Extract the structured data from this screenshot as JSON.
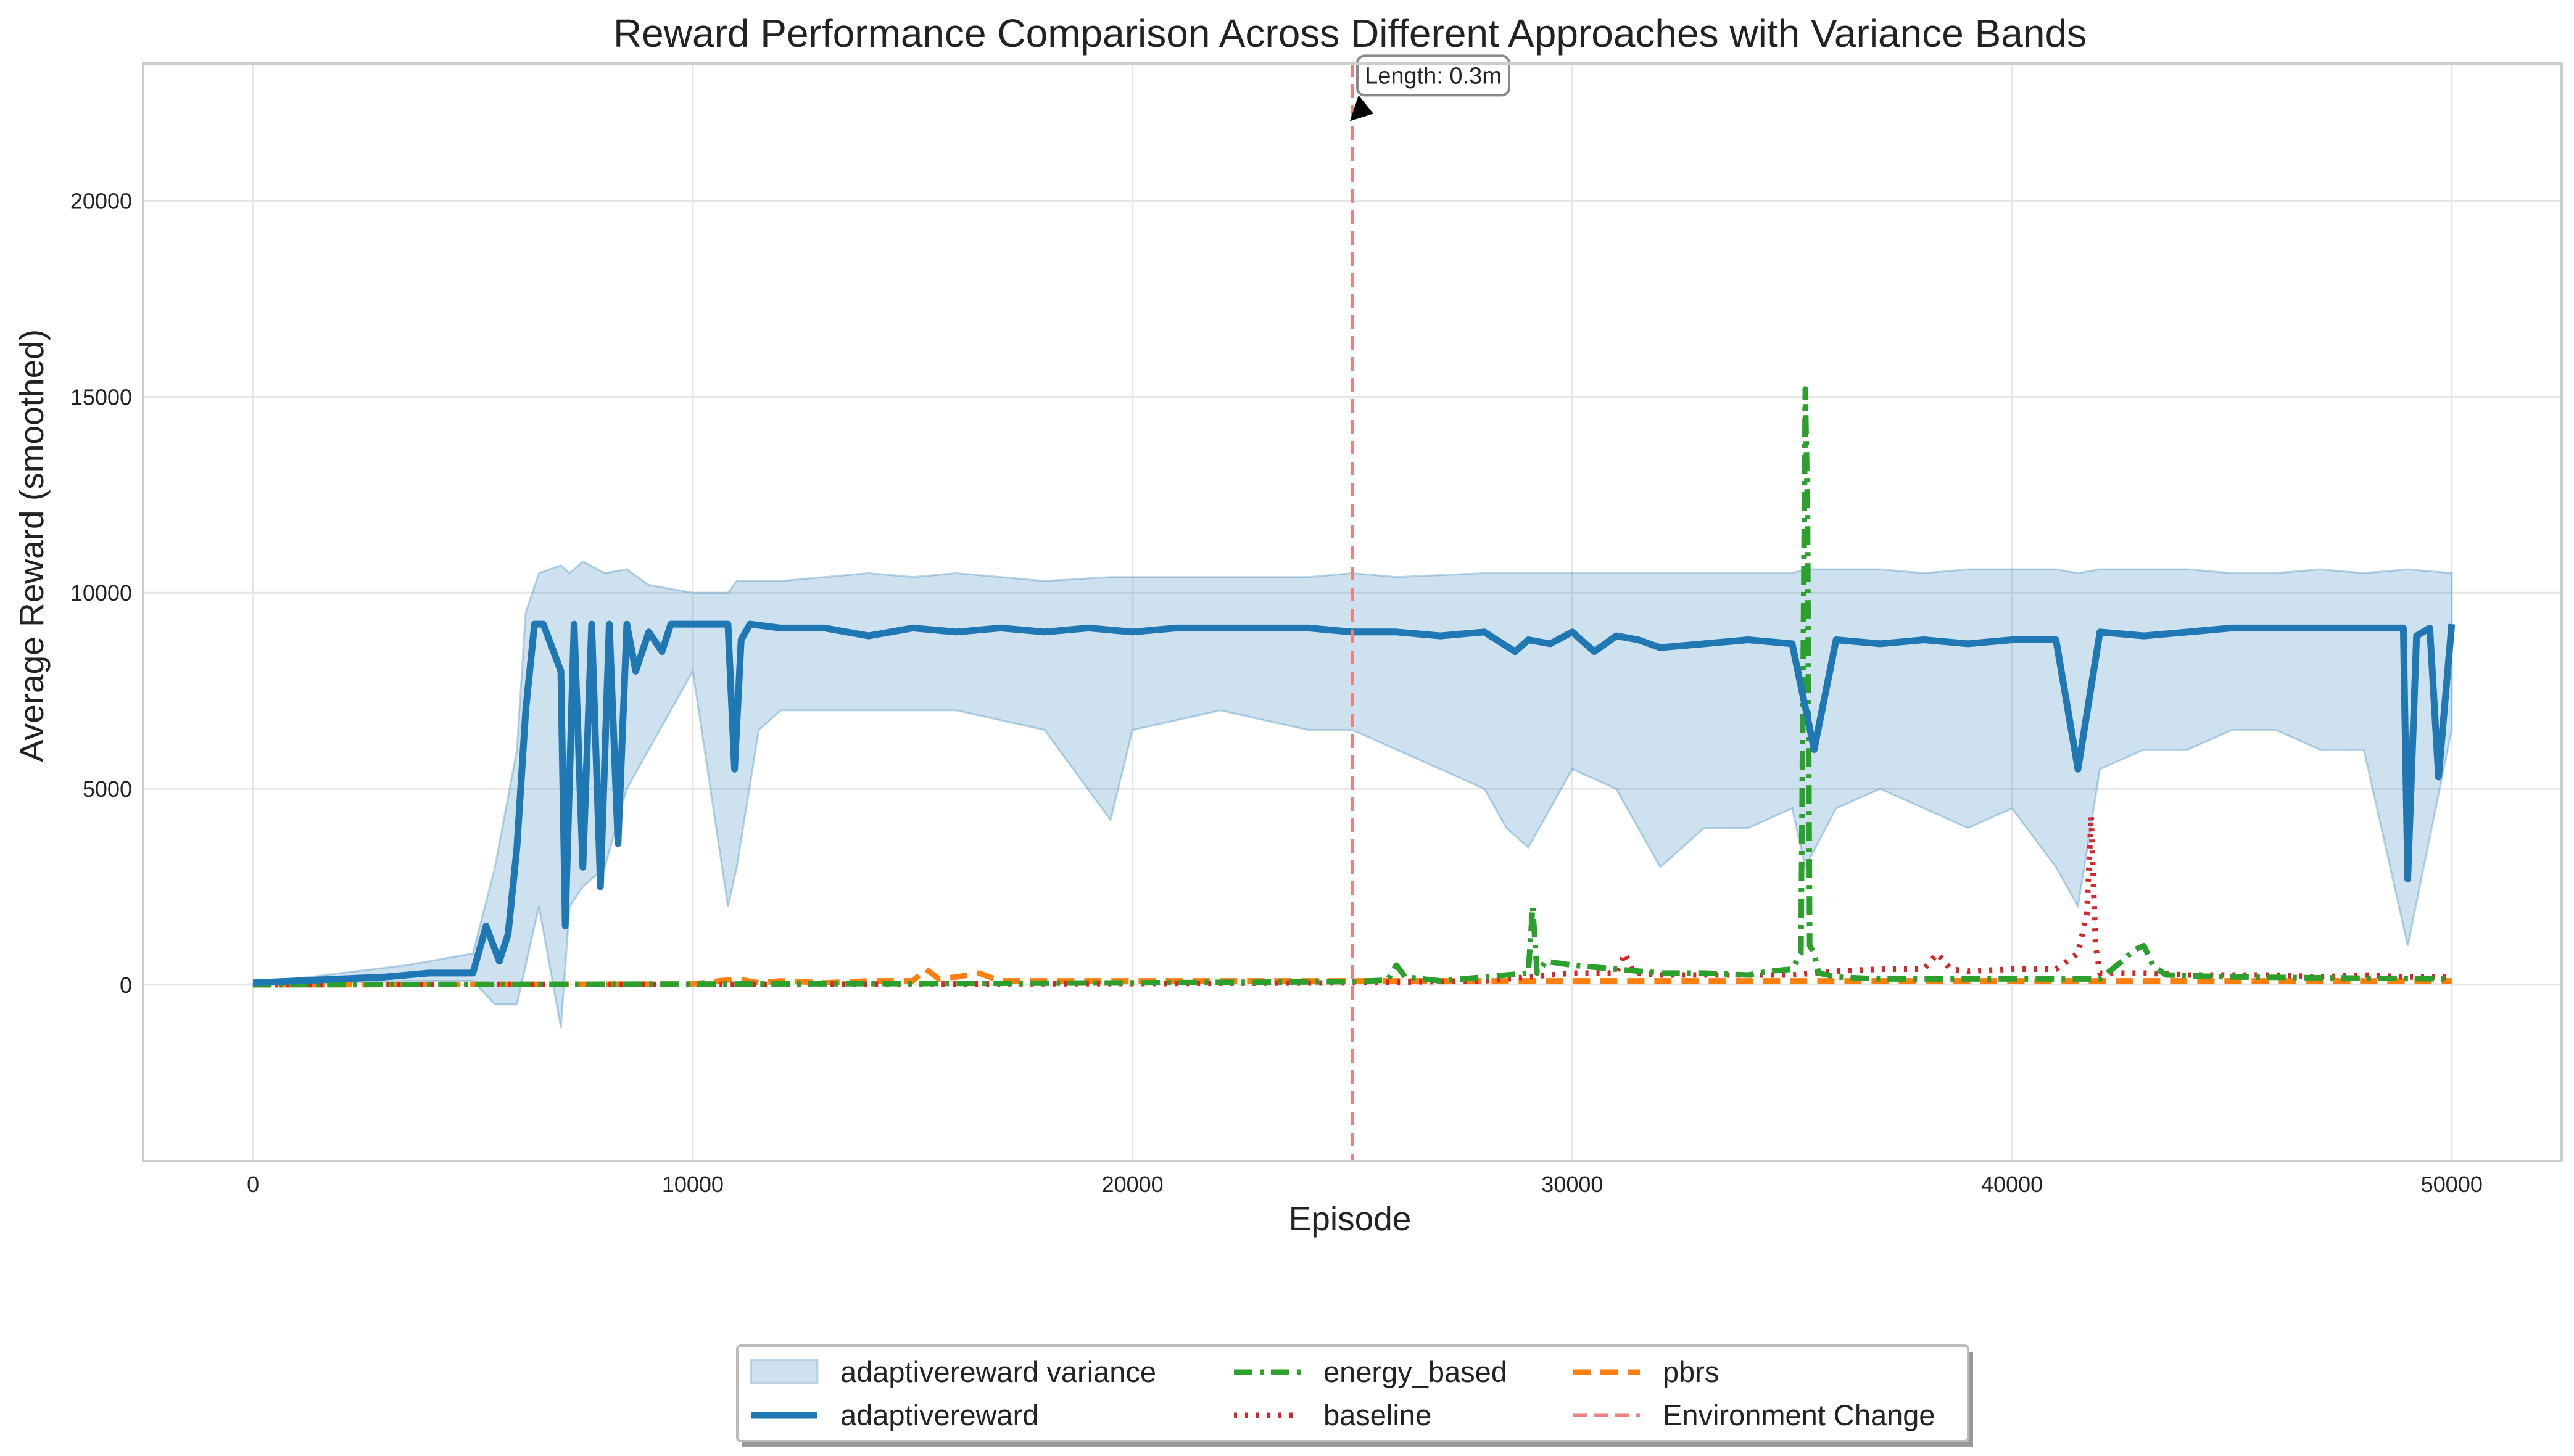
{
  "chart_data": {
    "type": "line",
    "title": "Reward Performance Comparison Across Different Approaches with Variance Bands",
    "xlabel": "Episode",
    "ylabel": "Average Reward (smoothed)",
    "xlim": [
      -2500,
      52500
    ],
    "ylim": [
      -4500,
      23500
    ],
    "x_ticks": [
      0,
      10000,
      20000,
      30000,
      40000,
      50000
    ],
    "x_tick_labels": [
      "0",
      "10000",
      "20000",
      "30000",
      "40000",
      "50000"
    ],
    "y_ticks": [
      0,
      5000,
      10000,
      15000,
      20000
    ],
    "y_tick_labels": [
      "0",
      "5000",
      "10000",
      "15000",
      "20000"
    ],
    "grid": true,
    "legend_position": "bottom-center",
    "series": [
      {
        "name": "adaptivereward variance",
        "style": "band",
        "color": "#1f77b4",
        "x": [
          0,
          2000,
          3500,
          5000,
          5500,
          6000,
          6200,
          6500,
          7000,
          7200,
          7500,
          8000,
          8500,
          9000,
          10000,
          10800,
          11000,
          11500,
          12000,
          14000,
          15000,
          16000,
          18000,
          19500,
          20000,
          22000,
          24000,
          25000,
          26000,
          28000,
          28500,
          29000,
          30000,
          31000,
          32000,
          33000,
          34000,
          35000,
          35300,
          36000,
          37000,
          38000,
          39000,
          40000,
          41000,
          41500,
          42000,
          43000,
          44000,
          45000,
          46000,
          47000,
          48000,
          49000,
          50000
        ],
        "upper": [
          20,
          300,
          500,
          800,
          3000,
          6000,
          9500,
          10500,
          10700,
          10500,
          10800,
          10500,
          10600,
          10200,
          10000,
          10000,
          10300,
          10300,
          10300,
          10500,
          10400,
          10500,
          10300,
          10400,
          10400,
          10400,
          10400,
          10500,
          10400,
          10500,
          10500,
          10500,
          10500,
          10500,
          10500,
          10500,
          10500,
          10500,
          10600,
          10600,
          10600,
          10500,
          10600,
          10600,
          10600,
          10500,
          10600,
          10600,
          10600,
          10500,
          10500,
          10600,
          10500,
          10600,
          10500
        ],
        "lower": [
          -20,
          50,
          100,
          100,
          -500,
          -500,
          500,
          2000,
          -1100,
          2000,
          2500,
          3000,
          5000,
          6000,
          8000,
          2000,
          3000,
          6500,
          7000,
          7000,
          7000,
          7000,
          6500,
          4200,
          6500,
          7000,
          6500,
          6500,
          6000,
          5000,
          4000,
          3500,
          5500,
          5000,
          3000,
          4000,
          4000,
          4500,
          3000,
          4500,
          5000,
          4500,
          4000,
          4500,
          3000,
          2000,
          5500,
          6000,
          6000,
          6500,
          6500,
          6000,
          6000,
          1000,
          6500
        ]
      },
      {
        "name": "adaptivereward",
        "style": "solid",
        "color": "#1f77b4",
        "x": [
          0,
          1000,
          2000,
          3000,
          4000,
          5000,
          5300,
          5600,
          5800,
          6000,
          6200,
          6400,
          6600,
          7000,
          7100,
          7300,
          7500,
          7700,
          7900,
          8100,
          8300,
          8500,
          8700,
          9000,
          9300,
          9500,
          10000,
          10500,
          10800,
          10950,
          11100,
          11300,
          12000,
          13000,
          14000,
          15000,
          16000,
          17000,
          18000,
          19000,
          20000,
          21000,
          22000,
          23000,
          24000,
          25000,
          26000,
          27000,
          28000,
          28700,
          29000,
          29500,
          30000,
          30500,
          31000,
          31500,
          32000,
          33000,
          34000,
          35000,
          35500,
          36000,
          37000,
          38000,
          39000,
          40000,
          41000,
          41500,
          42000,
          43000,
          44000,
          45000,
          46000,
          47000,
          48000,
          48500,
          48900,
          49000,
          49200,
          49500,
          49700,
          50000
        ],
        "y": [
          50,
          100,
          150,
          200,
          300,
          300,
          1500,
          600,
          1300,
          3500,
          7000,
          9200,
          9200,
          8000,
          1500,
          9200,
          3000,
          9200,
          2500,
          9200,
          3600,
          9200,
          8000,
          9000,
          8500,
          9200,
          9200,
          9200,
          9200,
          5500,
          8800,
          9200,
          9100,
          9100,
          8900,
          9100,
          9000,
          9100,
          9000,
          9100,
          9000,
          9100,
          9100,
          9100,
          9100,
          9000,
          9000,
          8900,
          9000,
          8500,
          8800,
          8700,
          9000,
          8500,
          8900,
          8800,
          8600,
          8700,
          8800,
          8700,
          6000,
          8800,
          8700,
          8800,
          8700,
          8800,
          8800,
          5500,
          9000,
          8900,
          9000,
          9100,
          9100,
          9100,
          9100,
          9100,
          9100,
          2700,
          8900,
          9100,
          5300,
          9200
        ]
      },
      {
        "name": "energy_based",
        "style": "dashdot",
        "color": "#2ca02c",
        "x": [
          0,
          5000,
          10000,
          15000,
          20000,
          25000,
          25800,
          26000,
          26200,
          27000,
          28000,
          29000,
          29100,
          29200,
          29400,
          30000,
          31000,
          32000,
          33000,
          34000,
          34500,
          35000,
          35200,
          35300,
          35350,
          35400,
          35500,
          35600,
          36000,
          37000,
          38000,
          39000,
          40000,
          41000,
          42000,
          42500,
          42800,
          43000,
          43200,
          43500,
          45000,
          47000,
          50000
        ],
        "y": [
          0,
          10,
          20,
          30,
          50,
          80,
          120,
          500,
          200,
          100,
          200,
          300,
          2000,
          300,
          600,
          500,
          400,
          300,
          300,
          250,
          350,
          400,
          800,
          15200,
          12000,
          1000,
          800,
          300,
          200,
          150,
          150,
          150,
          150,
          150,
          150,
          600,
          900,
          1000,
          500,
          250,
          200,
          180,
          150
        ]
      },
      {
        "name": "baseline",
        "style": "dotted",
        "color": "#d62728",
        "x": [
          0,
          5000,
          10000,
          15000,
          20000,
          25000,
          28000,
          29000,
          30000,
          31000,
          31200,
          31400,
          32000,
          33000,
          34000,
          35000,
          36000,
          37000,
          38000,
          38300,
          38600,
          39000,
          40000,
          41000,
          41500,
          41700,
          41800,
          41900,
          42000,
          43000,
          44000,
          45000,
          46000,
          47000,
          48000,
          49000,
          50000
        ],
        "y": [
          0,
          10,
          10,
          20,
          30,
          50,
          100,
          200,
          300,
          300,
          800,
          300,
          250,
          250,
          250,
          250,
          350,
          400,
          400,
          800,
          400,
          350,
          400,
          400,
          800,
          1800,
          4300,
          1000,
          300,
          300,
          250,
          250,
          250,
          200,
          250,
          200,
          200
        ]
      },
      {
        "name": "pbrs",
        "style": "dashed",
        "color": "#ff7f0e",
        "x": [
          0,
          5000,
          10000,
          11000,
          11500,
          12000,
          13000,
          14000,
          15000,
          15300,
          15600,
          16000,
          16500,
          17000,
          18000,
          20000,
          25000,
          30000,
          35000,
          40000,
          45000,
          50000
        ],
        "y": [
          0,
          10,
          20,
          150,
          50,
          100,
          50,
          100,
          100,
          400,
          150,
          200,
          300,
          100,
          100,
          100,
          100,
          100,
          100,
          100,
          100,
          100
        ]
      }
    ],
    "vline": {
      "x": 25000,
      "label": "Environment Change",
      "color": "#f08080"
    },
    "annotation": {
      "text": "Length: 0.3m",
      "x": 25000,
      "y": 22000
    },
    "legend": {
      "columns": [
        [
          "adaptivereward variance",
          "adaptivereward"
        ],
        [
          "energy_based",
          "baseline"
        ],
        [
          "pbrs",
          "Environment Change"
        ]
      ]
    }
  }
}
